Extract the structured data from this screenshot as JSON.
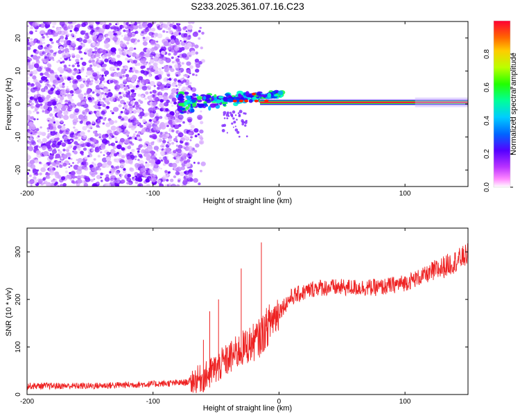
{
  "title": "S233.2025.361.07.16.C23",
  "chart_data": [
    {
      "type": "heatmap",
      "xlabel": "Height of straight line (km)",
      "ylabel": "Frequency (Hz)",
      "xlim": [
        -200,
        150
      ],
      "ylim": [
        -25,
        25
      ],
      "x_ticks": [
        "-200",
        "-100",
        "0",
        "100"
      ],
      "x_tick_values": [
        -200,
        -100,
        0,
        100
      ],
      "y_ticks": [
        "-20",
        "-10",
        "0",
        "10",
        "20"
      ],
      "y_tick_values": [
        -20,
        -10,
        0,
        10,
        20
      ],
      "colorbar": {
        "label": "Normalized spectral amplitude",
        "range": [
          0,
          1
        ],
        "ticks": [
          "0.0",
          "0.2",
          "0.4",
          "0.6",
          "0.8"
        ],
        "tick_values": [
          0,
          0.2,
          0.4,
          0.6,
          0.8
        ]
      },
      "description_values": {
        "noise_region_x": [
          -200,
          -70
        ],
        "signal_band_x": [
          -80,
          150
        ],
        "signal_band_freq_hz": [
          -2,
          5
        ],
        "center_freq_hz": 0.5
      }
    },
    {
      "type": "line",
      "xlabel": "Height of straight line (km)",
      "ylabel": "SNR (10 * v/v)",
      "xlim": [
        -200,
        150
      ],
      "ylim": [
        0,
        350
      ],
      "x_ticks": [
        "-200",
        "-100",
        "0",
        "100"
      ],
      "x_tick_values": [
        -200,
        -100,
        0,
        100
      ],
      "y_ticks": [
        "0",
        "100",
        "200",
        "300"
      ],
      "y_tick_values": [
        0,
        100,
        200,
        300
      ],
      "series": [
        {
          "name": "SNR",
          "color": "#ee2222",
          "x": [
            -200,
            -150,
            -100,
            -75,
            -60,
            -50,
            -40,
            -30,
            -20,
            -15,
            -10,
            -5,
            0,
            10,
            20,
            30,
            50,
            80,
            100,
            120,
            140,
            150
          ],
          "y": [
            18,
            18,
            22,
            25,
            35,
            55,
            75,
            95,
            110,
            120,
            140,
            160,
            175,
            205,
            215,
            225,
            225,
            225,
            235,
            255,
            280,
            295
          ]
        }
      ],
      "spikes": [
        {
          "x": -60,
          "y": 115
        },
        {
          "x": -55,
          "y": 175
        },
        {
          "x": -48,
          "y": 200
        },
        {
          "x": -30,
          "y": 265
        },
        {
          "x": -14,
          "y": 320
        }
      ]
    }
  ]
}
